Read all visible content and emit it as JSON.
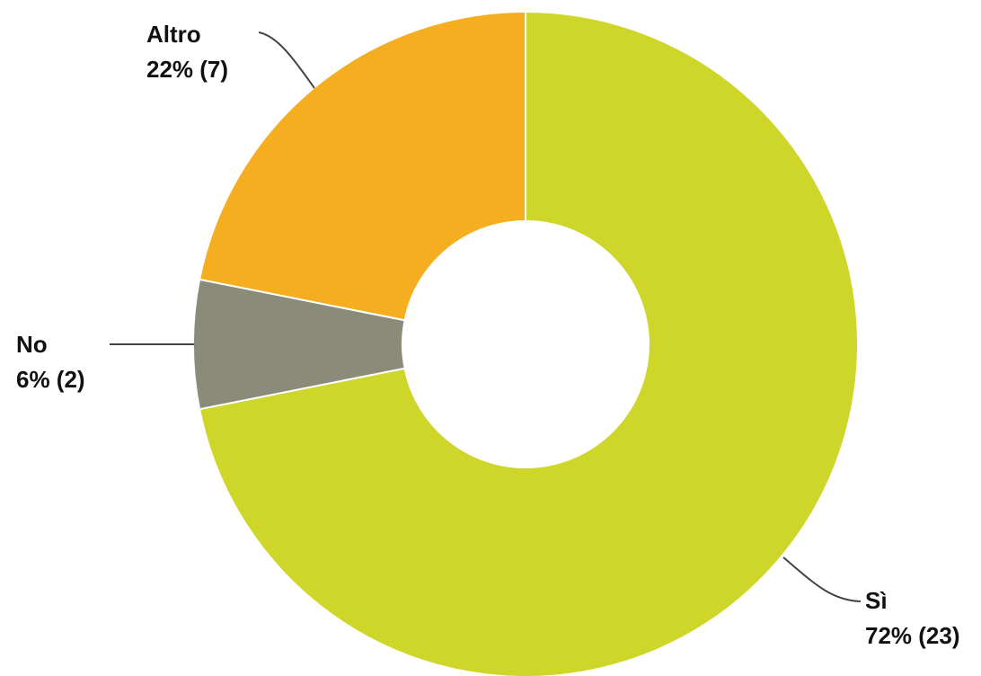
{
  "chart_data": {
    "type": "pie",
    "donut": true,
    "slices": [
      {
        "name": "Sì",
        "label": "Sì",
        "value": 23,
        "percent_label": "72% (23)",
        "color": "#cfd62a"
      },
      {
        "name": "No",
        "label": "No",
        "value": 2,
        "percent_label": "6% (2)",
        "color": "#8b8b79"
      },
      {
        "name": "Altro",
        "label": "Altro",
        "value": 7,
        "percent_label": "22% (7)",
        "color": "#f5ae20"
      }
    ],
    "legend": "none"
  }
}
